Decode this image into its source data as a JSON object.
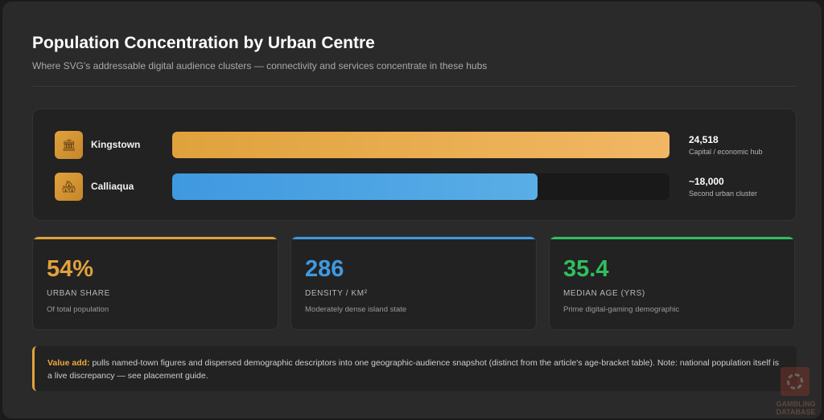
{
  "header": {
    "title": "Population Concentration by Urban Centre",
    "subtitle": "Where SVG's addressable digital audience clusters — connectivity and services concentrate in these hubs"
  },
  "chart_data": {
    "type": "bar",
    "orientation": "horizontal",
    "title": "Population Concentration by Urban Centre",
    "categories": [
      "Kingstown",
      "Calliaqua"
    ],
    "values": [
      24518,
      18000
    ],
    "xlim": [
      0,
      24518
    ],
    "grid": false,
    "bars": [
      {
        "label": "Kingstown",
        "value": 24518,
        "value_text": "24,518",
        "subtext": "Capital / economic hub",
        "color": "#e0a23c",
        "icon": "building-icon"
      },
      {
        "label": "Calliaqua",
        "value": 18000,
        "value_text": "~18,000",
        "subtext": "Second urban cluster",
        "color": "#3f99e0",
        "icon": "town-icon"
      }
    ]
  },
  "stats": [
    {
      "value": "54%",
      "label": "URBAN SHARE",
      "desc": "Of total population",
      "color": "#e0a23c"
    },
    {
      "value": "286",
      "label": "DENSITY / KM²",
      "desc": "Moderately dense island state",
      "color": "#3f99e0"
    },
    {
      "value": "35.4",
      "label": "MEDIAN AGE (YRS)",
      "desc": "Prime digital-gaming demographic",
      "color": "#2fbf5e"
    }
  ],
  "note": {
    "highlight": "Value add:",
    "text": "pulls named-town figures and dispersed demographic descriptors into one geographic-audience snapshot (distinct from the article's age-bracket table). Note: national population itself is a live discrepancy — see placement guide."
  },
  "watermark": {
    "line1": "GAMBLING",
    "line2": "DATABASE"
  }
}
